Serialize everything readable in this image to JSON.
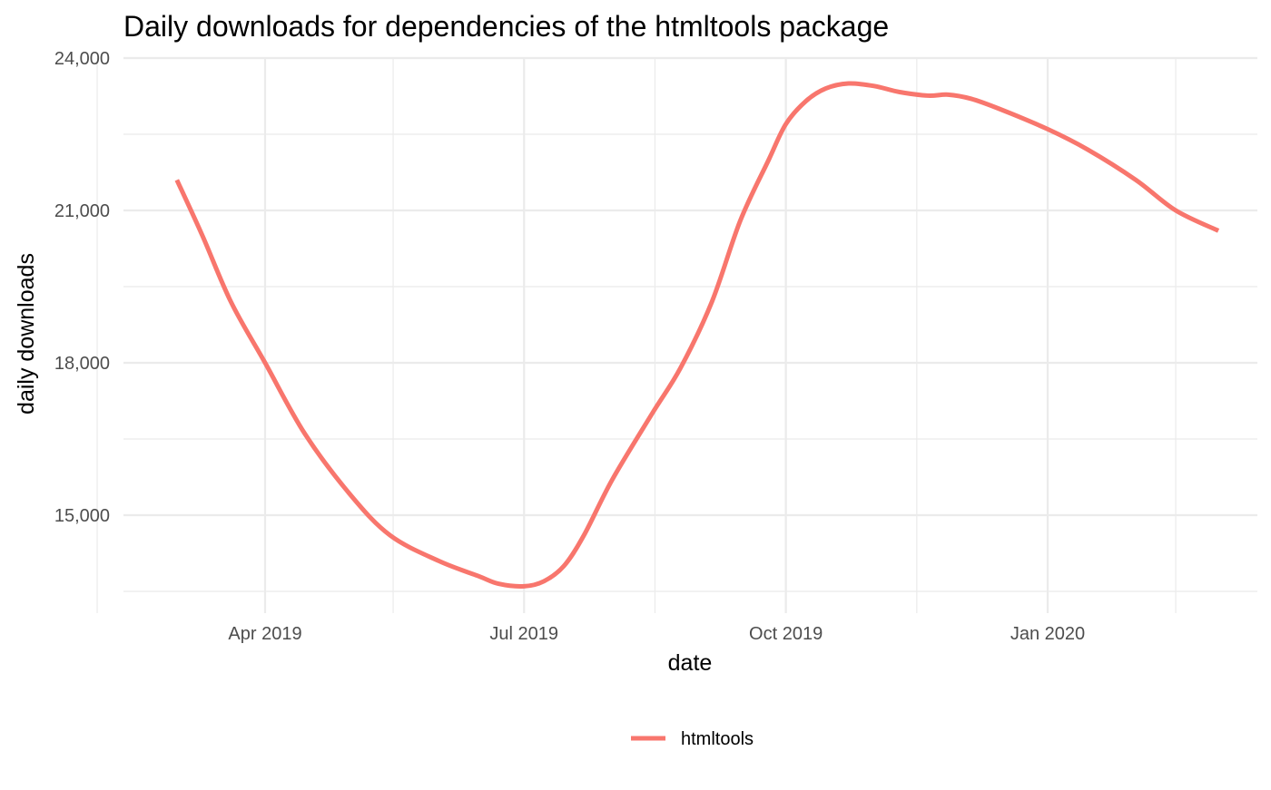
{
  "chart_data": {
    "type": "line",
    "title": "Daily downloads for dependencies of the htmltools package",
    "xlabel": "date",
    "ylabel": "daily downloads",
    "x_axis": {
      "type": "date",
      "range": [
        "2019-02-01",
        "2020-03-20"
      ],
      "ticks": [
        {
          "date": "2019-04-01",
          "label": "Apr 2019"
        },
        {
          "date": "2019-07-01",
          "label": "Jul 2019"
        },
        {
          "date": "2019-10-01",
          "label": "Oct 2019"
        },
        {
          "date": "2020-01-01",
          "label": "Jan 2020"
        }
      ],
      "minor_ticks": [
        "2019-02-01",
        "2019-05-16",
        "2019-08-16",
        "2019-11-16",
        "2020-02-15"
      ]
    },
    "y_axis": {
      "range": [
        13000,
        24000
      ],
      "ticks": [
        {
          "value": 15000,
          "label": "15,000"
        },
        {
          "value": 18000,
          "label": "18,000"
        },
        {
          "value": 21000,
          "label": "21,000"
        },
        {
          "value": 24000,
          "label": "24,000"
        }
      ],
      "minor_ticks": [
        13500,
        16500,
        19500,
        22500
      ]
    },
    "grid": true,
    "legend": {
      "position": "bottom"
    },
    "series": [
      {
        "name": "htmltools",
        "color": "#F8766D",
        "x": [
          "2019-03-01",
          "2019-03-10",
          "2019-03-20",
          "2019-04-01",
          "2019-04-15",
          "2019-05-01",
          "2019-05-15",
          "2019-06-01",
          "2019-06-15",
          "2019-06-22",
          "2019-07-01",
          "2019-07-08",
          "2019-07-15",
          "2019-07-22",
          "2019-08-01",
          "2019-08-15",
          "2019-08-25",
          "2019-09-05",
          "2019-09-15",
          "2019-09-25",
          "2019-10-01",
          "2019-10-08",
          "2019-10-15",
          "2019-10-23",
          "2019-11-01",
          "2019-11-10",
          "2019-11-20",
          "2019-11-27",
          "2019-12-05",
          "2019-12-15",
          "2020-01-01",
          "2020-01-15",
          "2020-02-01",
          "2020-02-15",
          "2020-03-01"
        ],
        "values": [
          21600,
          20500,
          19200,
          18000,
          16600,
          15400,
          14600,
          14100,
          13800,
          13650,
          13600,
          13700,
          14000,
          14600,
          15700,
          17000,
          17900,
          19200,
          20800,
          22000,
          22700,
          23150,
          23400,
          23500,
          23450,
          23330,
          23260,
          23280,
          23200,
          23000,
          22600,
          22200,
          21600,
          21000,
          20600
        ]
      }
    ]
  }
}
